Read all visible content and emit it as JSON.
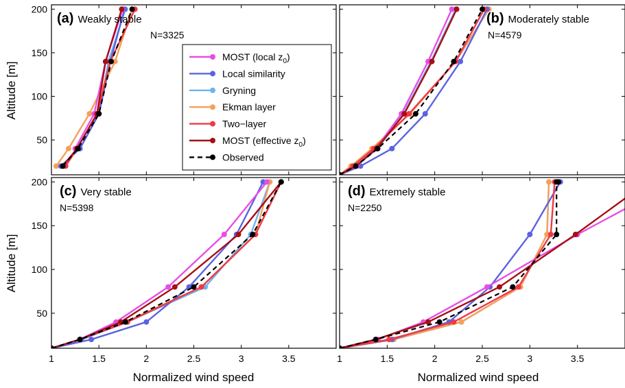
{
  "figure": {
    "x_axis_label": "Normalized wind speed",
    "y_axis_label": "Altitude [m]",
    "x_ticks": [
      "1",
      "1.5",
      "2",
      "2.5",
      "3",
      "3.5"
    ],
    "y_ticks": [
      "50",
      "100",
      "150",
      "200"
    ]
  },
  "legend": {
    "entries": [
      {
        "label": "MOST (local z",
        "sub": "0",
        "suffix": ")",
        "color": "#e64ee6",
        "dash": false
      },
      {
        "label": "Local similarity",
        "sub": "",
        "suffix": "",
        "color": "#5b63e0",
        "dash": false
      },
      {
        "label": "Gryning",
        "sub": "",
        "suffix": "",
        "color": "#6fb3f0",
        "dash": false
      },
      {
        "label": "Ekman layer",
        "sub": "",
        "suffix": "",
        "color": "#f5a05a",
        "dash": false
      },
      {
        "label": "Two−layer",
        "sub": "",
        "suffix": "",
        "color": "#ee3a46",
        "dash": false
      },
      {
        "label": "MOST (effective z",
        "sub": "0",
        "suffix": ")",
        "color": "#a50f15",
        "dash": false
      },
      {
        "label": "Observed",
        "sub": "",
        "suffix": "",
        "color": "#000000",
        "dash": true
      }
    ]
  },
  "chart_data": [
    {
      "type": "line",
      "panel_letter": "(a)",
      "title": "Weakly stable",
      "n_label": "N=3325",
      "xlim": [
        1,
        4
      ],
      "ylim": [
        10,
        205
      ],
      "series": [
        {
          "name": "MOST (local z0)",
          "x": [
            1.25,
            1.45,
            1.57,
            1.75
          ],
          "y": [
            40,
            80,
            140,
            200
          ]
        },
        {
          "name": "Local similarity",
          "x": [
            1.1,
            1.3,
            1.5,
            1.62,
            1.77
          ],
          "y": [
            20,
            40,
            80,
            140,
            200
          ]
        },
        {
          "name": "Gryning",
          "x": [
            1.1,
            1.3,
            1.5,
            1.6,
            1.78
          ],
          "y": [
            20,
            40,
            80,
            140,
            200
          ]
        },
        {
          "name": "Ekman layer",
          "x": [
            1.05,
            1.18,
            1.4,
            1.67,
            1.85
          ],
          "y": [
            20,
            40,
            80,
            140,
            200
          ]
        },
        {
          "name": "Two-layer",
          "x": [
            1.15,
            1.27,
            1.48,
            1.62,
            1.88
          ],
          "y": [
            20,
            40,
            80,
            140,
            200
          ]
        },
        {
          "name": "MOST (effective z0)",
          "x": [
            1.12,
            1.27,
            1.48,
            1.57,
            1.74
          ],
          "y": [
            20,
            40,
            80,
            140,
            200
          ]
        },
        {
          "name": "Observed",
          "x": [
            1.12,
            1.28,
            1.5,
            1.63,
            1.85
          ],
          "y": [
            20,
            40,
            80,
            140,
            200
          ]
        }
      ]
    },
    {
      "type": "line",
      "panel_letter": "(b)",
      "title": "Moderately stable",
      "n_label": "N=4579",
      "xlim": [
        1,
        4
      ],
      "ylim": [
        10,
        205
      ],
      "series": [
        {
          "name": "MOST (local z0)",
          "x": [
            1,
            1.18,
            1.38,
            1.65,
            1.93,
            2.18
          ],
          "y": [
            10,
            20,
            40,
            80,
            140,
            200
          ]
        },
        {
          "name": "Local similarity",
          "x": [
            1,
            1.22,
            1.55,
            1.9,
            2.27,
            2.55
          ],
          "y": [
            10,
            20,
            40,
            80,
            140,
            200
          ]
        },
        {
          "name": "Gryning",
          "x": [
            1,
            1.17,
            1.4,
            1.67,
            1.96,
            2.22
          ],
          "y": [
            10,
            20,
            40,
            80,
            140,
            200
          ]
        },
        {
          "name": "Ekman layer",
          "x": [
            1,
            1.12,
            1.34,
            1.74,
            2.22,
            2.57
          ],
          "y": [
            10,
            20,
            40,
            80,
            140,
            200
          ]
        },
        {
          "name": "Two-layer",
          "x": [
            1,
            1.14,
            1.36,
            1.73,
            2.22,
            2.52
          ],
          "y": [
            10,
            20,
            40,
            80,
            140,
            200
          ]
        },
        {
          "name": "MOST (effective z0)",
          "x": [
            1,
            1.17,
            1.39,
            1.68,
            1.97,
            2.23
          ],
          "y": [
            10,
            20,
            40,
            80,
            140,
            200
          ]
        },
        {
          "name": "Observed",
          "x": [
            1,
            1.17,
            1.4,
            1.8,
            2.2,
            2.5
          ],
          "y": [
            10,
            20,
            40,
            80,
            140,
            200
          ]
        }
      ]
    },
    {
      "type": "line",
      "panel_letter": "(c)",
      "title": "Very stable",
      "n_label": "N=5398",
      "xlim": [
        1,
        4
      ],
      "ylim": [
        10,
        205
      ],
      "series": [
        {
          "name": "MOST (local z0)",
          "x": [
            1,
            1.3,
            1.68,
            2.23,
            2.82,
            3.27
          ],
          "y": [
            10,
            20,
            40,
            80,
            140,
            200
          ]
        },
        {
          "name": "Local similarity",
          "x": [
            1,
            1.42,
            2.0,
            2.45,
            2.95,
            3.23
          ],
          "y": [
            10,
            20,
            40,
            80,
            140,
            200
          ]
        },
        {
          "name": "Gryning",
          "x": [
            1,
            1.32,
            1.8,
            2.62,
            3.1,
            3.3
          ],
          "y": [
            10,
            20,
            40,
            80,
            140,
            200
          ]
        },
        {
          "name": "Ekman layer",
          "x": [
            1,
            1.3,
            1.78,
            2.58,
            3.15,
            3.3
          ],
          "y": [
            10,
            20,
            40,
            80,
            140,
            200
          ]
        },
        {
          "name": "Two-layer",
          "x": [
            1,
            1.3,
            1.8,
            2.58,
            3.15,
            3.42
          ],
          "y": [
            10,
            20,
            40,
            80,
            140,
            200
          ]
        },
        {
          "name": "MOST (effective z0)",
          "x": [
            1,
            1.3,
            1.73,
            2.3,
            2.97,
            3.42
          ],
          "y": [
            10,
            20,
            40,
            80,
            140,
            200
          ]
        },
        {
          "name": "Observed",
          "x": [
            1,
            1.3,
            1.78,
            2.5,
            3.12,
            3.42
          ],
          "y": [
            10,
            20,
            40,
            80,
            140,
            200
          ]
        }
      ]
    },
    {
      "type": "line",
      "panel_letter": "(d)",
      "title": "Extremely stable",
      "n_label": "N=2250",
      "xlim": [
        1,
        4
      ],
      "ylim": [
        10,
        205
      ],
      "series": [
        {
          "name": "MOST (local z0)",
          "x": [
            1,
            1.4,
            1.88,
            2.55,
            3.5,
            4.1
          ],
          "y": [
            10,
            20,
            40,
            80,
            140,
            175
          ]
        },
        {
          "name": "Local similarity",
          "x": [
            1,
            1.55,
            2.15,
            2.58,
            3.0,
            3.32
          ],
          "y": [
            10,
            20,
            40,
            80,
            140,
            200
          ]
        },
        {
          "name": "Gryning",
          "x": [
            1,
            1.57,
            2.28,
            2.9,
            3.18,
            3.2
          ],
          "y": [
            10,
            20,
            40,
            80,
            140,
            200
          ]
        },
        {
          "name": "Ekman layer",
          "x": [
            1,
            1.57,
            2.28,
            2.9,
            3.18,
            3.2
          ],
          "y": [
            10,
            20,
            40,
            80,
            140,
            200
          ]
        },
        {
          "name": "Two-layer",
          "x": [
            1,
            1.52,
            2.2,
            2.88,
            3.22,
            3.26
          ],
          "y": [
            10,
            20,
            40,
            80,
            140,
            200
          ]
        },
        {
          "name": "MOST (effective z0)",
          "x": [
            1,
            1.38,
            1.93,
            2.68,
            3.48,
            4.1
          ],
          "y": [
            10,
            20,
            40,
            80,
            140,
            189
          ]
        },
        {
          "name": "Observed",
          "x": [
            1,
            1.38,
            2.05,
            2.82,
            3.28,
            3.28,
            3.3
          ],
          "y": [
            10,
            20,
            40,
            80,
            140,
            200,
            200
          ]
        }
      ]
    }
  ]
}
